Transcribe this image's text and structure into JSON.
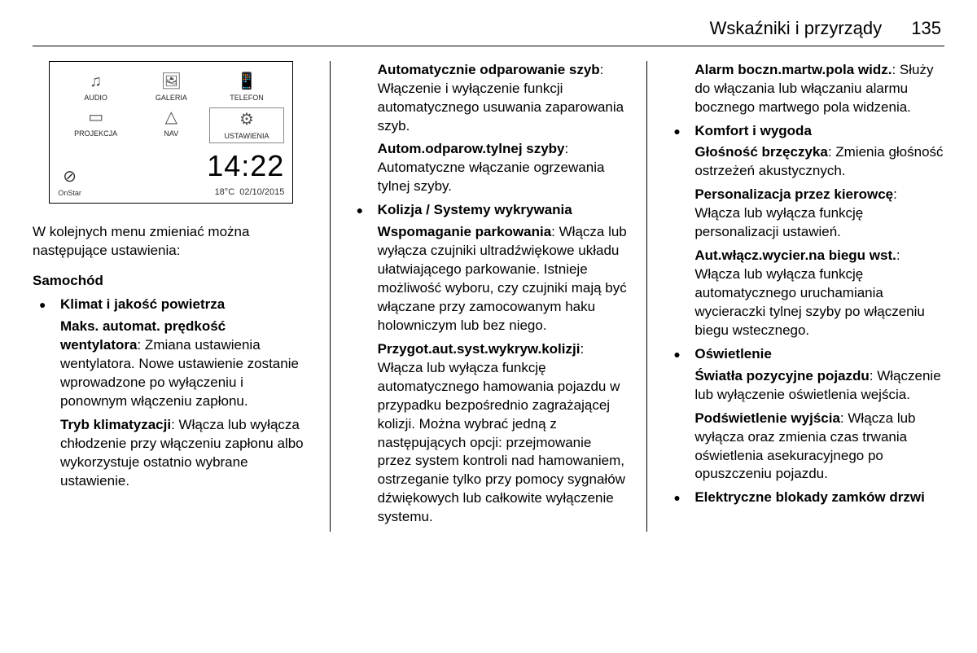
{
  "header": {
    "section_title": "Wskaźniki i przyrządy",
    "page_number": "135"
  },
  "screenshot": {
    "icons": [
      {
        "label": "AUDIO",
        "glyph": "♫"
      },
      {
        "label": "GALERIA",
        "glyph": "🖼"
      },
      {
        "label": "TELEFON",
        "glyph": "📱"
      },
      {
        "label": "PROJEKCJA",
        "glyph": "▭"
      },
      {
        "label": "NAV",
        "glyph": "△"
      },
      {
        "label": "USTAWIENIA",
        "glyph": "⚙",
        "selected": true
      }
    ],
    "onstar": {
      "label": "OnStar",
      "glyph": "⊘"
    },
    "clock": {
      "time": "14:22",
      "temp": "18°C",
      "date": "02/10/2015"
    }
  },
  "col1": {
    "intro": "W kolejnych menu zmieniać można następujące ustawienia:",
    "heading": "Samochód",
    "bullet1_title": "Klimat i jakość powietrza",
    "b1_p1_bold": "Maks. automat. prędkość wentylatora",
    "b1_p1_rest": ": Zmiana ustawienia wentylatora. Nowe ustawienie zostanie wprowadzone po wyłączeniu i ponownym włączeniu zapłonu.",
    "b1_p2_bold": "Tryb klimatyzacji",
    "b1_p2_rest": ": Włącza lub wyłącza chłodzenie przy włączeniu zapłonu albo wykorzystuje ostatnio wybrane ustawienie."
  },
  "col2": {
    "p1_bold": "Automatycznie odparowanie szyb",
    "p1_rest": ": Włączenie i wyłączenie funkcji automatycznego usuwania zaparowania szyb.",
    "p2_bold": "Autom.odparow.tylnej szyby",
    "p2_rest": ": Automatyczne włączanie ogrzewania tylnej szyby.",
    "bullet2_title": "Kolizja / Systemy wykrywania",
    "b2_p1_bold": "Wspomaganie parkowania",
    "b2_p1_rest": ": Włącza lub wyłącza czujniki ultradźwiękowe układu ułatwiającego parkowanie. Istnieje możliwość wyboru, czy czujniki mają być włączane przy zamocowanym haku holowniczym lub bez niego.",
    "b2_p2_bold": "Przygot.aut.syst.wykryw.kolizji",
    "b2_p2_rest": ": Włącza lub wyłącza funkcję automatycznego hamowania pojazdu w przypadku bezpośrednio zagrażającej kolizji. Można wybrać jedną z następujących opcji: przejmowanie przez system kontroli nad hamowaniem, ostrzeganie tylko przy pomocy sygnałów dźwiękowych lub całkowite wyłączenie systemu."
  },
  "col3": {
    "p1_bold": "Alarm boczn.martw.pola widz.",
    "p1_rest": ": Służy do włączania lub włączaniu alarmu bocznego martwego pola widzenia.",
    "bullet3_title": "Komfort i wygoda",
    "b3_p1_bold": "Głośność brzęczyka",
    "b3_p1_rest": ": Zmienia głośność ostrzeżeń akustycznych.",
    "b3_p2_bold": "Personalizacja przez kierowcę",
    "b3_p2_rest": ": Włącza lub wyłącza funkcję personalizacji ustawień.",
    "b3_p3_bold": "Aut.włącz.wycier.na biegu wst.",
    "b3_p3_rest": ": Włącza lub wyłącza funkcję automatycznego uruchamiania wycieraczki tylnej szyby po włączeniu biegu wstecznego.",
    "bullet4_title": "Oświetlenie",
    "b4_p1_bold": "Światła pozycyjne pojazdu",
    "b4_p1_rest": ": Włączenie lub wyłączenie oświetlenia wejścia.",
    "b4_p2_bold": "Podświetlenie wyjścia",
    "b4_p2_rest": ": Włącza lub wyłącza oraz zmienia czas trwania oświetlenia asekuracyjnego po opuszczeniu pojazdu.",
    "bullet5_title": "Elektryczne blokady zamków drzwi"
  }
}
